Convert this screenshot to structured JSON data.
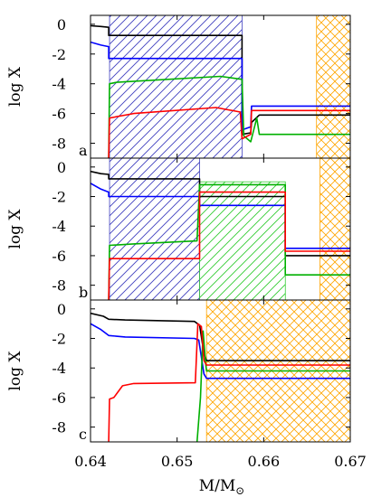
{
  "chart_data": {
    "type": "line",
    "xlabel_main": "M/M",
    "xlabel_sub": "⊙",
    "x_ticks": [
      "0.64",
      "0.65",
      "0.66",
      "0.67"
    ],
    "xlim": [
      0.64,
      0.67
    ],
    "ylim": [
      -9,
      0
    ],
    "colors": {
      "black": "#000000",
      "blue": "#0000ff",
      "green": "#00b000",
      "red": "#ff0000",
      "hatch_blue": "#4040c0",
      "hatch_green": "#33cc33",
      "hatch_orange": "#ffa500"
    },
    "panels": [
      {
        "id": "a",
        "label": "a",
        "ylabel": "log X",
        "y_ticks": [
          "0",
          "-2",
          "-4",
          "-6",
          "-8"
        ],
        "hatch_regions": [
          {
            "color": "blue",
            "pattern": "diagonal",
            "x_range": [
              0.6422,
              0.6575
            ],
            "y_range": [
              -9,
              0
            ]
          },
          {
            "color": "orange",
            "pattern": "cross",
            "x_range": [
              0.6661,
              0.67
            ],
            "y_range": [
              -9,
              0
            ]
          }
        ],
        "series": [
          {
            "color": "black",
            "points": [
              [
                0.64,
                -0.1
              ],
              [
                0.6412,
                -0.15
              ],
              [
                0.6421,
                -0.2
              ],
              [
                0.6421,
                -0.75
              ],
              [
                0.6575,
                -0.75
              ],
              [
                0.6575,
                -7.4
              ],
              [
                0.6585,
                -7.3
              ],
              [
                0.6586,
                -6.6
              ],
              [
                0.6595,
                -6.1
              ],
              [
                0.67,
                -6.1
              ]
            ]
          },
          {
            "color": "blue",
            "points": [
              [
                0.64,
                -1.2
              ],
              [
                0.6412,
                -1.4
              ],
              [
                0.6421,
                -1.5
              ],
              [
                0.6421,
                -2.3
              ],
              [
                0.6575,
                -2.3
              ],
              [
                0.6575,
                -7.1
              ],
              [
                0.6585,
                -6.9
              ],
              [
                0.6586,
                -5.5
              ],
              [
                0.67,
                -5.5
              ]
            ]
          },
          {
            "color": "green",
            "points": [
              [
                0.6421,
                -9
              ],
              [
                0.6422,
                -4.0
              ],
              [
                0.643,
                -3.9
              ],
              [
                0.655,
                -3.5
              ],
              [
                0.6575,
                -3.7
              ],
              [
                0.6577,
                -7.5
              ],
              [
                0.6585,
                -7.9
              ],
              [
                0.6592,
                -6.3
              ],
              [
                0.6595,
                -7.4
              ],
              [
                0.67,
                -7.4
              ]
            ]
          },
          {
            "color": "red",
            "points": [
              [
                0.6421,
                -9
              ],
              [
                0.6422,
                -6.3
              ],
              [
                0.645,
                -6.0
              ],
              [
                0.6545,
                -5.6
              ],
              [
                0.6573,
                -5.9
              ],
              [
                0.6575,
                -7.7
              ],
              [
                0.6585,
                -7.4
              ],
              [
                0.6586,
                -5.8
              ],
              [
                0.67,
                -5.8
              ]
            ]
          }
        ]
      },
      {
        "id": "b",
        "label": "b",
        "ylabel": "log X",
        "y_ticks": [
          "0",
          "-2",
          "-4",
          "-6",
          "-8"
        ],
        "hatch_regions": [
          {
            "color": "blue",
            "pattern": "diagonal",
            "x_range": [
              0.6422,
              0.6526
            ],
            "y_range": [
              -9,
              0
            ]
          },
          {
            "color": "green",
            "pattern": "diagonal",
            "x_range": [
              0.6526,
              0.6625
            ],
            "y_range": [
              -9,
              -1.0
            ]
          },
          {
            "color": "orange",
            "pattern": "cross",
            "x_range": [
              0.6665,
              0.67
            ],
            "y_range": [
              -9,
              0
            ]
          }
        ],
        "series": [
          {
            "color": "black",
            "points": [
              [
                0.64,
                -0.3
              ],
              [
                0.6412,
                -0.45
              ],
              [
                0.6421,
                -0.5
              ],
              [
                0.6421,
                -0.8
              ],
              [
                0.6526,
                -0.8
              ],
              [
                0.6526,
                -2.0
              ],
              [
                0.6625,
                -2.0
              ],
              [
                0.6625,
                -6.0
              ],
              [
                0.67,
                -6.0
              ]
            ]
          },
          {
            "color": "blue",
            "points": [
              [
                0.64,
                -1.1
              ],
              [
                0.6412,
                -1.5
              ],
              [
                0.6421,
                -1.7
              ],
              [
                0.6421,
                -2.0
              ],
              [
                0.6526,
                -2.0
              ],
              [
                0.6526,
                -2.6
              ],
              [
                0.6625,
                -2.6
              ],
              [
                0.6625,
                -5.5
              ],
              [
                0.67,
                -5.5
              ]
            ]
          },
          {
            "color": "green",
            "points": [
              [
                0.6421,
                -9
              ],
              [
                0.6422,
                -5.3
              ],
              [
                0.645,
                -5.2
              ],
              [
                0.6523,
                -5.0
              ],
              [
                0.6526,
                -1.2
              ],
              [
                0.6625,
                -1.2
              ],
              [
                0.6625,
                -7.3
              ],
              [
                0.67,
                -7.3
              ]
            ]
          },
          {
            "color": "red",
            "points": [
              [
                0.6421,
                -9
              ],
              [
                0.6422,
                -6.2
              ],
              [
                0.6526,
                -6.2
              ],
              [
                0.6526,
                -1.7
              ],
              [
                0.6625,
                -1.7
              ],
              [
                0.6625,
                -5.7
              ],
              [
                0.67,
                -5.7
              ]
            ]
          }
        ]
      },
      {
        "id": "c",
        "label": "c",
        "ylabel": "log X",
        "y_ticks": [
          "0",
          "-2",
          "-4",
          "-6",
          "-8"
        ],
        "hatch_regions": [
          {
            "color": "orange",
            "pattern": "cross",
            "x_range": [
              0.6534,
              0.67
            ],
            "y_range": [
              -9,
              0
            ]
          }
        ],
        "series": [
          {
            "color": "black",
            "points": [
              [
                0.64,
                -0.3
              ],
              [
                0.6415,
                -0.5
              ],
              [
                0.6421,
                -0.7
              ],
              [
                0.644,
                -0.75
              ],
              [
                0.652,
                -0.85
              ],
              [
                0.6526,
                -1.1
              ],
              [
                0.6531,
                -3.0
              ],
              [
                0.6534,
                -3.5
              ],
              [
                0.67,
                -3.5
              ]
            ]
          },
          {
            "color": "blue",
            "points": [
              [
                0.64,
                -1.0
              ],
              [
                0.6412,
                -1.4
              ],
              [
                0.6421,
                -1.8
              ],
              [
                0.644,
                -1.9
              ],
              [
                0.652,
                -2.0
              ],
              [
                0.6525,
                -2.1
              ],
              [
                0.6531,
                -4.4
              ],
              [
                0.6534,
                -4.7
              ],
              [
                0.67,
                -4.7
              ]
            ]
          },
          {
            "color": "green",
            "points": [
              [
                0.6523,
                -9
              ],
              [
                0.6527,
                -6.0
              ],
              [
                0.653,
                -1.5
              ],
              [
                0.6533,
                -3.7
              ],
              [
                0.6534,
                -4.2
              ],
              [
                0.67,
                -4.2
              ]
            ]
          },
          {
            "color": "red",
            "points": [
              [
                0.6421,
                -9
              ],
              [
                0.6422,
                -6.1
              ],
              [
                0.6427,
                -6.0
              ],
              [
                0.6437,
                -5.2
              ],
              [
                0.645,
                -5.05
              ],
              [
                0.6521,
                -5.0
              ],
              [
                0.6524,
                -1.0
              ],
              [
                0.6528,
                -1.2
              ],
              [
                0.6531,
                -3.5
              ],
              [
                0.6534,
                -3.8
              ],
              [
                0.67,
                -3.8
              ]
            ]
          }
        ]
      }
    ]
  }
}
